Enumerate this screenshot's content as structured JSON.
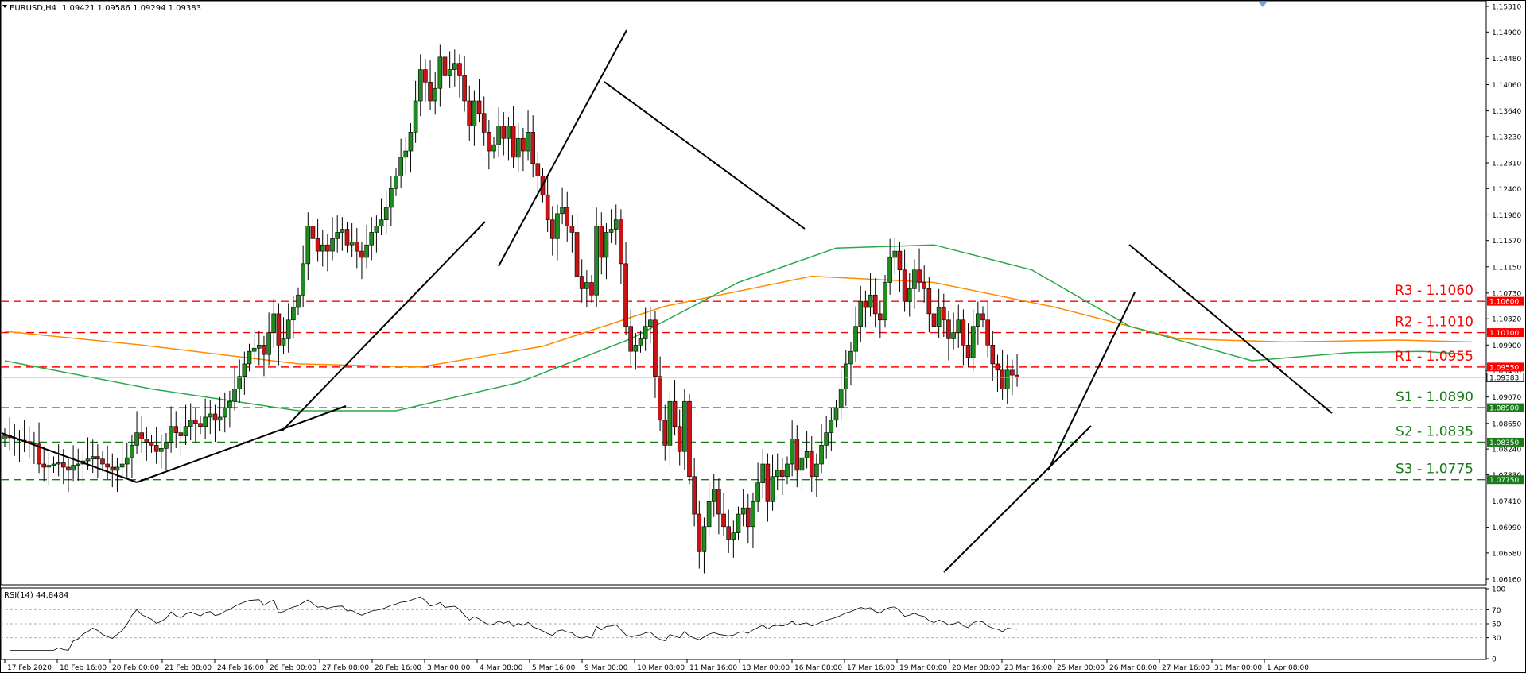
{
  "header": {
    "symbol": "EURUSD,H4",
    "ohlc": "1.09421 1.09586 1.09294 1.09383"
  },
  "rsi_header": "RSI(14) 44.8484",
  "chart_data": [
    {
      "type": "candlestick",
      "symbol": "EURUSD",
      "timeframe": "H4",
      "ylim": [
        1.0616,
        1.1531
      ],
      "grid": false,
      "y_ticks": [
        "1.15310",
        "1.14900",
        "1.14480",
        "1.14060",
        "1.13640",
        "1.13230",
        "1.12810",
        "1.12400",
        "1.11980",
        "1.11570",
        "1.11150",
        "1.10730",
        "1.10320",
        "1.09900",
        "1.09490",
        "1.09070",
        "1.08650",
        "1.08240",
        "1.07830",
        "1.07410",
        "1.06990",
        "1.06580",
        "1.06160"
      ],
      "x_ticks": [
        "17 Feb 2020",
        "18 Feb 16:00",
        "20 Feb 00:00",
        "21 Feb 08:00",
        "24 Feb 16:00",
        "26 Feb 00:00",
        "27 Feb 08:00",
        "28 Feb 16:00",
        "3 Mar 00:00",
        "4 Mar 08:00",
        "5 Mar 16:00",
        "9 Mar 00:00",
        "10 Mar 08:00",
        "11 Mar 16:00",
        "13 Mar 00:00",
        "16 Mar 08:00",
        "17 Mar 16:00",
        "19 Mar 00:00",
        "20 Mar 08:00",
        "23 Mar 16:00",
        "25 Mar 00:00",
        "26 Mar 08:00",
        "27 Mar 16:00",
        "31 Mar 00:00",
        "1 Apr 08:00"
      ],
      "current_price": "1.09383",
      "levels": [
        {
          "name": "R3",
          "value": 1.106,
          "label": "R3 - 1.1060",
          "tag": "1.10600",
          "color": "#ff0000"
        },
        {
          "name": "R2",
          "value": 1.101,
          "label": "R2 - 1.1010",
          "tag": "1.10100",
          "color": "#ff0000"
        },
        {
          "name": "R1",
          "value": 1.0955,
          "label": "R1 - 1.0955",
          "tag": "1.09550",
          "color": "#ff0000"
        },
        {
          "name": "S1",
          "value": 1.089,
          "label": "S1 - 1.0890",
          "tag": "1.08900",
          "color": "#1a7a1a"
        },
        {
          "name": "S2",
          "value": 1.0835,
          "label": "S2 - 1.0835",
          "tag": "1.08350",
          "color": "#1a7a1a"
        },
        {
          "name": "S3",
          "value": 1.0775,
          "label": "S3 - 1.0775",
          "tag": "1.07750",
          "color": "#1a7a1a"
        }
      ],
      "closes": [
        1.0845,
        1.0842,
        1.084,
        1.0838,
        1.0836,
        1.0834,
        1.0832,
        1.08,
        1.0795,
        1.0798,
        1.08,
        1.0802,
        1.0795,
        1.079,
        1.0798,
        1.08,
        1.0805,
        1.0808,
        1.0812,
        1.0808,
        1.08,
        1.0795,
        1.079,
        1.0795,
        1.08,
        1.081,
        1.083,
        1.085,
        1.084,
        1.0835,
        1.083,
        1.082,
        1.0825,
        1.0835,
        1.086,
        1.085,
        1.0845,
        1.086,
        1.087,
        1.0865,
        1.086,
        1.0875,
        1.088,
        1.087,
        1.0875,
        1.089,
        1.09,
        1.092,
        1.094,
        1.096,
        1.098,
        1.0985,
        1.099,
        1.0975,
        1.101,
        1.104,
        1.099,
        1.1,
        1.103,
        1.105,
        1.107,
        1.112,
        1.118,
        1.116,
        1.114,
        1.115,
        1.114,
        1.116,
        1.117,
        1.1175,
        1.115,
        1.1155,
        1.114,
        1.113,
        1.115,
        1.117,
        1.118,
        1.119,
        1.121,
        1.124,
        1.126,
        1.129,
        1.13,
        1.133,
        1.138,
        1.143,
        1.141,
        1.138,
        1.14,
        1.145,
        1.142,
        1.143,
        1.144,
        1.142,
        1.138,
        1.134,
        1.138,
        1.136,
        1.133,
        1.13,
        1.131,
        1.134,
        1.132,
        1.134,
        1.129,
        1.132,
        1.13,
        1.133,
        1.128,
        1.126,
        1.123,
        1.119,
        1.116,
        1.12,
        1.121,
        1.118,
        1.117,
        1.11,
        1.108,
        1.109,
        1.107,
        1.118,
        1.113,
        1.117,
        1.1175,
        1.119,
        1.112,
        1.102,
        1.098,
        1.099,
        1.1,
        1.102,
        1.103,
        1.094,
        1.087,
        1.083,
        1.09,
        1.086,
        1.082,
        1.09,
        1.078,
        1.072,
        1.066,
        1.07,
        1.074,
        1.076,
        1.072,
        1.07,
        1.068,
        1.069,
        1.072,
        1.073,
        1.07,
        1.074,
        1.077,
        1.08,
        1.074,
        1.078,
        1.079,
        1.078,
        1.08,
        1.084,
        1.079,
        1.081,
        1.082,
        1.078,
        1.08,
        1.083,
        1.085,
        1.087,
        1.089,
        1.092,
        1.096,
        1.098,
        1.102,
        1.106,
        1.105,
        1.107,
        1.104,
        1.103,
        1.109,
        1.113,
        1.114,
        1.111,
        1.106,
        1.108,
        1.111,
        1.109,
        1.108,
        1.104,
        1.102,
        1.105,
        1.103,
        1.1,
        1.101,
        1.103,
        1.099,
        1.097,
        1.102,
        1.104,
        1.103,
        1.099,
        1.096,
        1.095,
        1.092,
        1.095,
        1.0942,
        1.0938
      ],
      "series": [
        {
          "name": "Moving Average (orange)",
          "color": "#ff8c00",
          "values": [
            [
              0,
              1.1012
            ],
            [
              28,
              1.099
            ],
            [
              60,
              1.096
            ],
            [
              85,
              1.0955
            ],
            [
              110,
              1.0988
            ],
            [
              135,
              1.1052
            ],
            [
              165,
              1.11
            ],
            [
              190,
              1.109
            ],
            [
              215,
              1.105
            ],
            [
              240,
              1.1
            ],
            [
              262,
              1.0995
            ],
            [
              285,
              1.0998
            ],
            [
              300,
              1.0995
            ]
          ]
        },
        {
          "name": "Moving Average (green)",
          "color": "#2aaa4a",
          "values": [
            [
              0,
              1.0965
            ],
            [
              30,
              1.092
            ],
            [
              60,
              1.0885
            ],
            [
              80,
              1.0885
            ],
            [
              105,
              1.093
            ],
            [
              128,
              1.1
            ],
            [
              150,
              1.109
            ],
            [
              170,
              1.1145
            ],
            [
              190,
              1.115
            ],
            [
              210,
              1.111
            ],
            [
              230,
              1.102
            ],
            [
              255,
              1.0965
            ],
            [
              275,
              1.0978
            ],
            [
              290,
              1.098
            ],
            [
              300,
              1.0975
            ]
          ]
        }
      ],
      "rsi": {
        "name": "RSI(14)",
        "value": "44.8484",
        "ylim": [
          0,
          100
        ],
        "ticks": [
          "100",
          "70",
          "50",
          "30",
          "0"
        ],
        "levels": [
          70,
          50,
          30
        ]
      }
    }
  ]
}
